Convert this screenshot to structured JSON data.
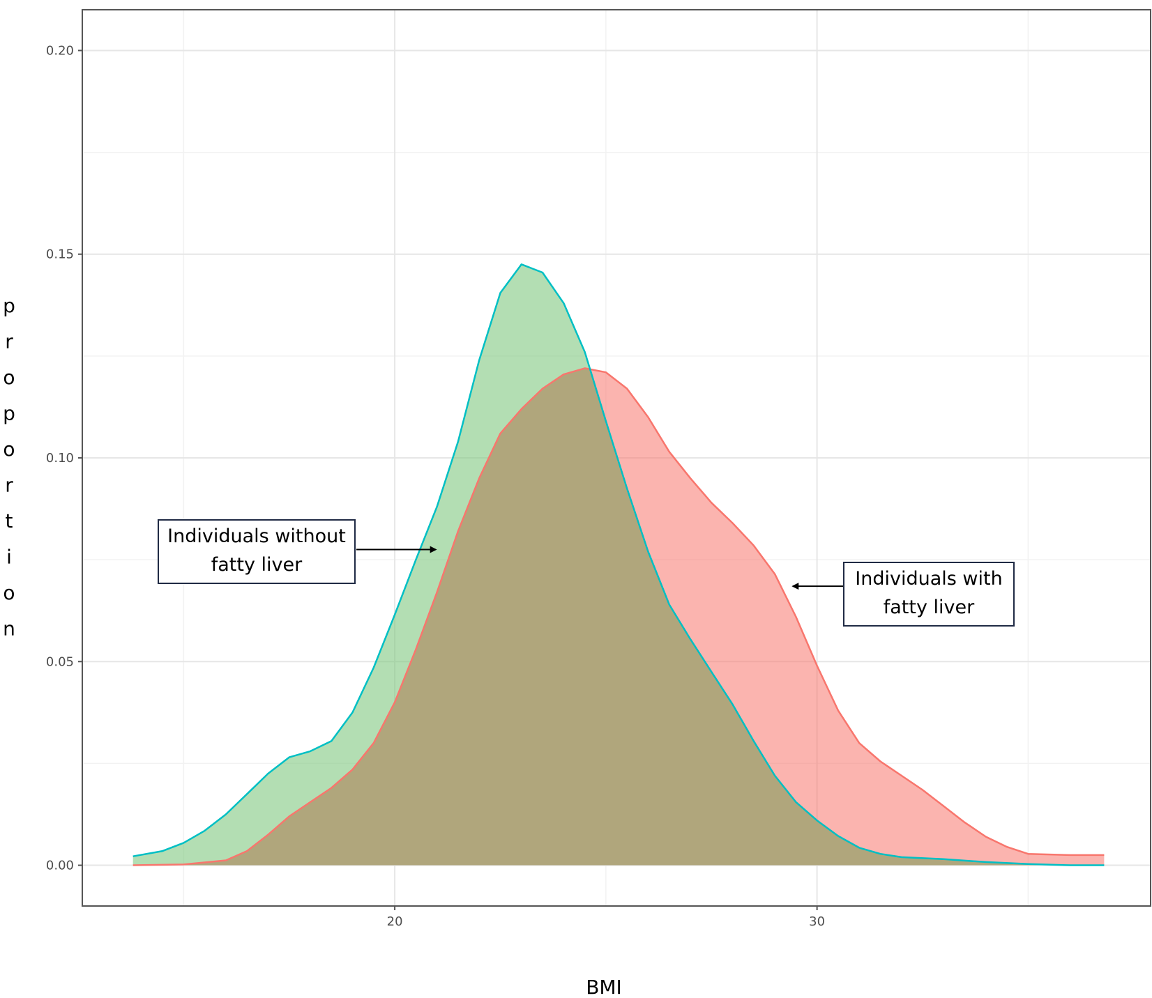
{
  "chart_data": {
    "type": "area",
    "title": "",
    "xlabel": "BMI",
    "ylabel": "proportion",
    "xlim": [
      12.6,
      37.9
    ],
    "ylim": [
      -0.01,
      0.21
    ],
    "x_ticks": [
      20,
      30
    ],
    "x_tick_labels": [
      "20",
      "30"
    ],
    "x_minor_gridlines": [
      15,
      25,
      35
    ],
    "y_ticks": [
      0.0,
      0.05,
      0.1,
      0.15,
      0.2
    ],
    "y_tick_labels": [
      "0.00",
      "0.05",
      "0.10",
      "0.15",
      "0.20"
    ],
    "y_minor_gridlines": [
      0.025,
      0.075,
      0.125,
      0.175
    ],
    "grid": true,
    "legend": "none",
    "series": [
      {
        "color": "#f8766d",
        "fill": "rgba(248,118,109,0.55)",
        "x": [
          13.8,
          15.0,
          16.0,
          16.5,
          17.0,
          17.5,
          18.0,
          18.5,
          19.0,
          19.5,
          20.0,
          20.5,
          21.0,
          21.5,
          22.0,
          22.5,
          23.0,
          23.5,
          24.0,
          24.5,
          25.0,
          25.5,
          26.0,
          26.5,
          27.0,
          27.5,
          28.0,
          28.5,
          29.0,
          29.5,
          30.0,
          30.5,
          31.0,
          31.5,
          32.0,
          32.5,
          33.0,
          33.5,
          34.0,
          34.5,
          35.0,
          36.0,
          36.8
        ],
        "values": [
          0.0,
          0.0002,
          0.0012,
          0.0035,
          0.0075,
          0.012,
          0.0155,
          0.019,
          0.0235,
          0.03,
          0.04,
          0.053,
          0.067,
          0.082,
          0.095,
          0.106,
          0.112,
          0.117,
          0.1205,
          0.122,
          0.121,
          0.117,
          0.11,
          0.1015,
          0.095,
          0.089,
          0.084,
          0.0785,
          0.0715,
          0.061,
          0.049,
          0.038,
          0.03,
          0.0255,
          0.022,
          0.0185,
          0.0145,
          0.0105,
          0.007,
          0.0045,
          0.0028,
          0.0025,
          0.0025
        ]
      },
      {
        "color": "#00bfc4",
        "fill": "rgba(124,198,124,0.58)",
        "x": [
          13.8,
          14.5,
          15.0,
          15.5,
          16.0,
          16.5,
          17.0,
          17.5,
          18.0,
          18.5,
          19.0,
          19.5,
          20.0,
          20.5,
          21.0,
          21.5,
          22.0,
          22.5,
          23.0,
          23.5,
          24.0,
          24.5,
          25.0,
          25.5,
          26.0,
          26.5,
          27.0,
          27.5,
          28.0,
          28.5,
          29.0,
          29.5,
          30.0,
          30.5,
          31.0,
          31.5,
          32.0,
          33.0,
          34.0,
          35.0,
          36.0,
          36.8
        ],
        "values": [
          0.0022,
          0.0035,
          0.0055,
          0.0085,
          0.0125,
          0.0175,
          0.0225,
          0.0265,
          0.028,
          0.0305,
          0.0375,
          0.0485,
          0.0615,
          0.075,
          0.088,
          0.104,
          0.124,
          0.1405,
          0.1475,
          0.1455,
          0.138,
          0.126,
          0.109,
          0.0925,
          0.077,
          0.064,
          0.0555,
          0.0475,
          0.0395,
          0.0305,
          0.022,
          0.0155,
          0.011,
          0.0072,
          0.0043,
          0.0028,
          0.002,
          0.0015,
          0.0008,
          0.0003,
          0.0,
          0.0
        ]
      }
    ],
    "annotations": [
      {
        "text_lines": [
          "Individuals without",
          "fatty liver"
        ],
        "arrow_to": [
          21.0,
          0.0775
        ]
      },
      {
        "text_lines": [
          "Individuals with",
          "fatty liver"
        ],
        "arrow_to": [
          29.4,
          0.0685
        ]
      }
    ]
  }
}
